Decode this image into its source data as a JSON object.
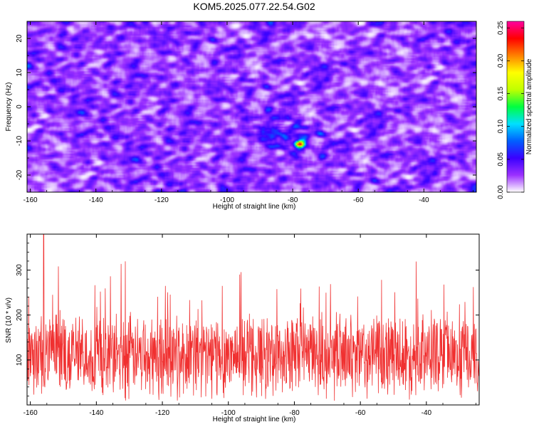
{
  "title": "KOM5.2025.077.22.54.G02",
  "chart_data": [
    {
      "type": "heatmap",
      "xlabel": "Height of straight line (km)",
      "ylabel": "Frequency (Hz)",
      "xlim": [
        -161,
        -24
      ],
      "ylim": [
        -25,
        25
      ],
      "xticks": [
        -160,
        -140,
        -120,
        -100,
        -80,
        -60,
        -40
      ],
      "yticks": [
        -20,
        -10,
        0,
        10,
        20
      ],
      "colorbar": {
        "label": "Normalized spectral amplitude",
        "range": [
          0,
          0.26
        ],
        "ticks": [
          0.0,
          0.05,
          0.1,
          0.15,
          0.2,
          0.25
        ],
        "tick_labels": [
          "0.00",
          "0.05",
          "0.10",
          "0.15",
          "0.20",
          "0.25"
        ],
        "colormap": [
          "#ffffff",
          "#9b30ff",
          "#3a00ff",
          "#0060ff",
          "#00e0ff",
          "#00ff40",
          "#c0ff00",
          "#ffff00",
          "#ff8000",
          "#ff0000",
          "#ff00a0"
        ]
      },
      "peak": {
        "x": -78,
        "y": -11,
        "value": 0.25
      },
      "enhanced_region": {
        "x_range": [
          -95,
          -70
        ],
        "y_range": [
          -14,
          -2
        ]
      },
      "background_level": [
        0.0,
        0.08
      ]
    },
    {
      "type": "line",
      "xlabel": "Height of straight line (km)",
      "ylabel": "SNR (10 * v/v)",
      "xlim": [
        -161,
        -24
      ],
      "ylim": [
        0,
        380
      ],
      "xticks": [
        -160,
        -140,
        -120,
        -100,
        -80,
        -60,
        -40
      ],
      "yticks": [
        100,
        200,
        300
      ],
      "color": "#f03030",
      "series_summary": {
        "baseline": 110,
        "min": 5,
        "max": 380,
        "max_at": -156
      }
    }
  ]
}
